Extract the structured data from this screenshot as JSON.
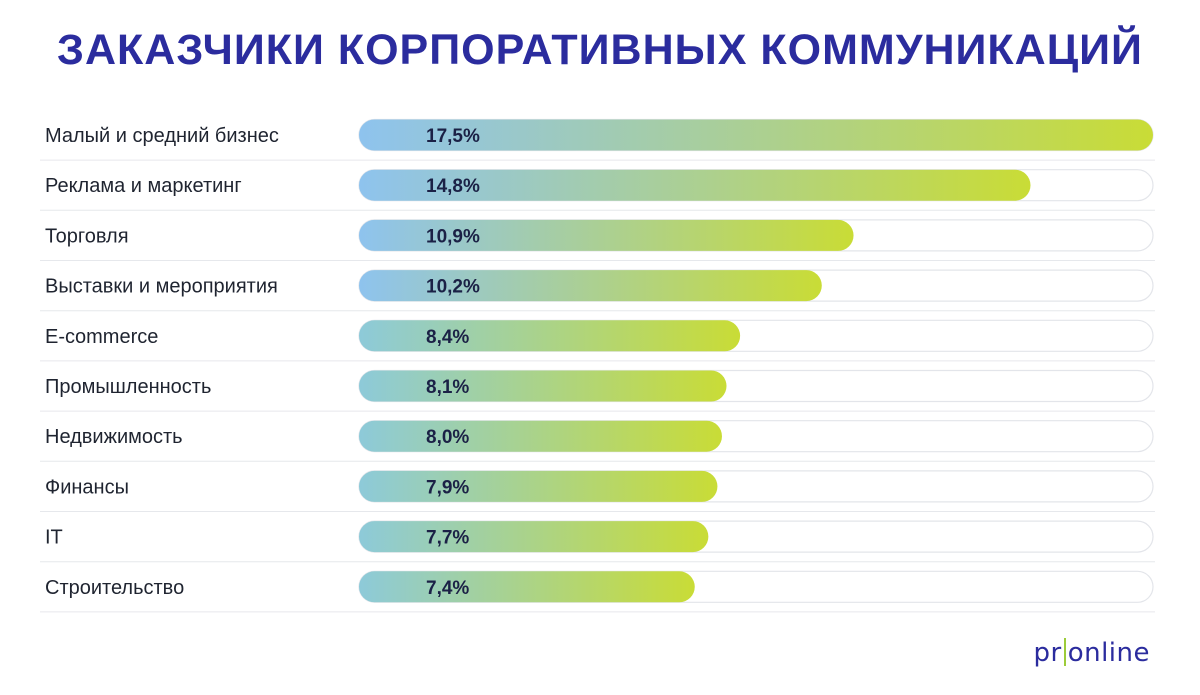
{
  "title": "ЗАКАЗЧИКИ КОРПОРАТИВНЫХ КОММУНИКАЦИЙ",
  "logo": {
    "left": "pr",
    "right": "online"
  },
  "colors": {
    "title": "#2b2c9e",
    "bar_start_blue": "#8ec3ee",
    "bar_start_teal": "#8dcad9",
    "bar_end": "#c9dc36",
    "logo_accent": "#9dcc3a"
  },
  "chart_data": {
    "type": "bar",
    "orientation": "horizontal",
    "categories": [
      "Малый и средний бизнес",
      "Реклама и маркетинг",
      "Торговля",
      "Выставки и мероприятия",
      "E-commerce",
      "Промышленность",
      "Недвижимость",
      "Финансы",
      "IT",
      "Строительство"
    ],
    "values": [
      17.5,
      14.8,
      10.9,
      10.2,
      8.4,
      8.1,
      8.0,
      7.9,
      7.7,
      7.4
    ],
    "value_labels": [
      "17,5%",
      "14,8%",
      "10,9%",
      "10,2%",
      "8,4%",
      "8,1%",
      "8,0%",
      "7,9%",
      "7,7%",
      "7,4%"
    ],
    "unit": "%",
    "xlim": [
      0,
      17.5
    ],
    "grid": false,
    "legend": "none"
  }
}
